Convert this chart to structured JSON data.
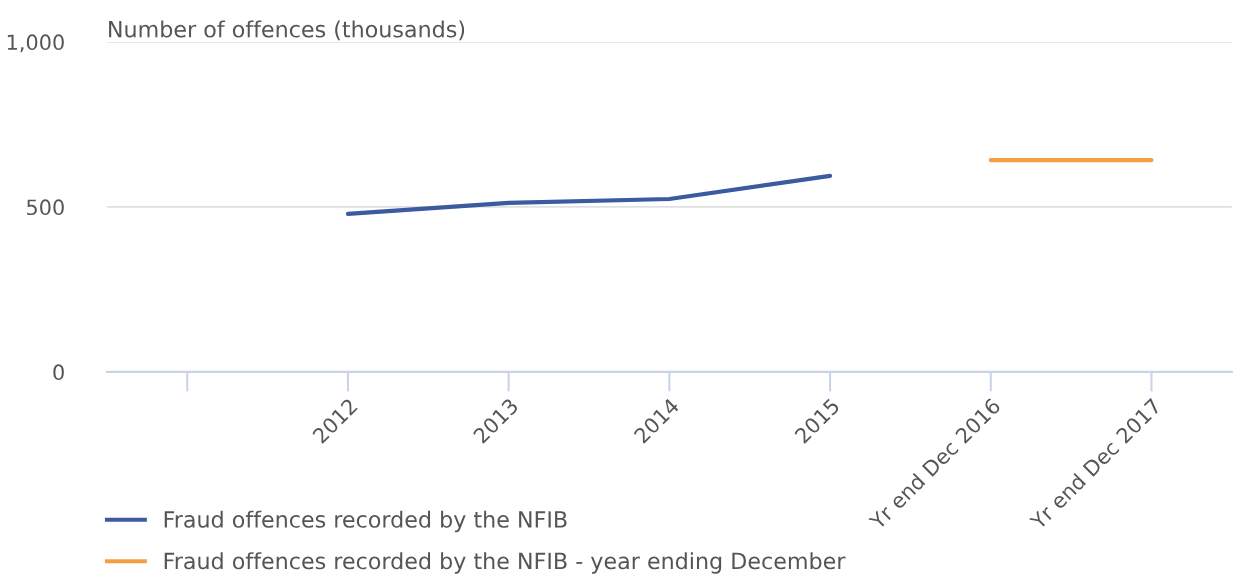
{
  "chart_data": {
    "type": "line",
    "ylabel": "Number of offences (thousands)",
    "categories": [
      null,
      "2012",
      "2013",
      "2014",
      "2015",
      "Yr end Dec 2016",
      "Yr end Dec 2017"
    ],
    "series": [
      {
        "name": "Fraud offences recorded by the NFIB",
        "color": "#3c5aa0",
        "values": [
          null,
          479,
          512,
          524,
          594,
          null,
          null
        ]
      },
      {
        "name": "Fraud offences recorded by the NFIB - year ending December",
        "color": "#f4a042",
        "values": [
          null,
          null,
          null,
          null,
          null,
          642,
          642
        ]
      }
    ],
    "ylim": [
      0,
      1000
    ],
    "yticks": [
      0,
      500,
      {
        "value": 1000,
        "label": "1,000"
      }
    ],
    "grid": "y",
    "legend": "bottom left",
    "marker": "none",
    "line_style": "solid"
  }
}
